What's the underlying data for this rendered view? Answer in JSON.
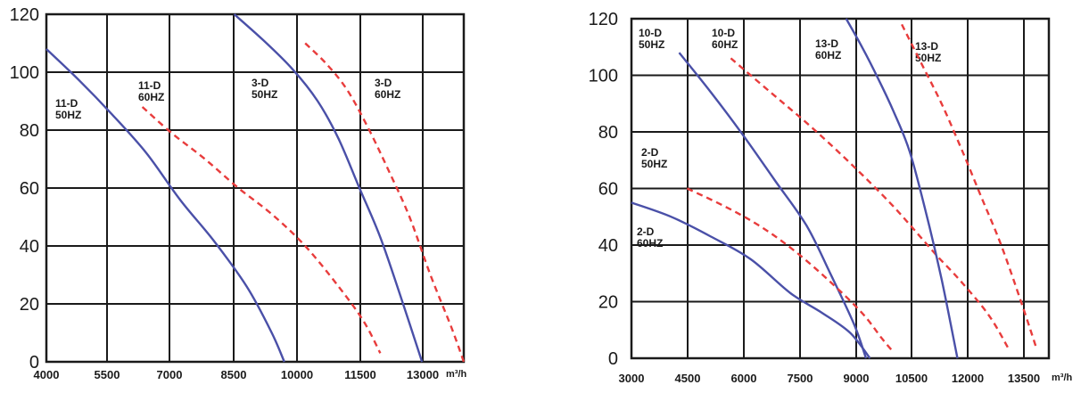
{
  "chart_data": [
    {
      "type": "line",
      "x_unit": "m³/h",
      "x_ticks": [
        "4000",
        "5500",
        "7000",
        "8500",
        "10000",
        "11500",
        "13000"
      ],
      "y_ticks": [
        "0",
        "20",
        "40",
        "60",
        "80",
        "100",
        "120"
      ],
      "xlim": [
        4000,
        14000
      ],
      "ylim": [
        0,
        120
      ],
      "grid": true,
      "series": [
        {
          "label": "11-D\n50HZ",
          "color": "#4a50a8",
          "style": "solid",
          "x": [
            4000,
            4800,
            5600,
            6400,
            7200,
            8000,
            8800,
            9400,
            9700
          ],
          "y": [
            108,
            97,
            85,
            72,
            56,
            42,
            26,
            10,
            0
          ]
        },
        {
          "label": "11-D\n60HZ",
          "color": "#e83c3c",
          "style": "dashed",
          "x": [
            6300,
            7000,
            7800,
            8600,
            9400,
            10200,
            11000,
            11600,
            12000
          ],
          "y": [
            88,
            79,
            70,
            60,
            51,
            40,
            26,
            14,
            3
          ]
        },
        {
          "label": "3-D\n50HZ",
          "color": "#4a50a8",
          "style": "solid",
          "x": [
            8500,
            9200,
            9900,
            10500,
            11000,
            11500,
            12000,
            12500,
            13000
          ],
          "y": [
            120,
            111,
            101,
            90,
            77,
            60,
            43,
            22,
            0
          ]
        },
        {
          "label": "3-D\n60HZ",
          "color": "#e83c3c",
          "style": "dashed",
          "x": [
            10200,
            10700,
            11200,
            11700,
            12200,
            12700,
            13200,
            13700,
            14000
          ],
          "y": [
            110,
            103,
            94,
            81,
            66,
            50,
            30,
            12,
            0
          ]
        }
      ]
    },
    {
      "type": "line",
      "x_unit": "m³/h",
      "x_ticks": [
        "3000",
        "4500",
        "6000",
        "7500",
        "9000",
        "10500",
        "12000",
        "13500"
      ],
      "y_ticks": [
        "0",
        "20",
        "40",
        "60",
        "80",
        "100",
        "120"
      ],
      "xlim": [
        3000,
        13500
      ],
      "ylim": [
        0,
        120
      ],
      "grid": true,
      "series": [
        {
          "label": "10-D\n50HZ",
          "color": "#4a50a8",
          "style": "solid",
          "x": [
            4200,
            5000,
            5800,
            6600,
            7400,
            8000,
            8600,
            8900
          ],
          "y": [
            108,
            94,
            79,
            63,
            47,
            30,
            12,
            0
          ]
        },
        {
          "label": "10-D\n60HZ",
          "color": "#e83c3c",
          "style": "dashed",
          "x": [
            5500,
            6500,
            7500,
            8500,
            9500,
            10200,
            10700,
            11300,
            12000,
            12500
          ],
          "y": [
            106,
            94,
            82,
            69,
            55,
            44,
            36,
            27,
            15,
            3
          ]
        },
        {
          "label": "13-D\n60HZ",
          "color": "#e83c3c",
          "style": "dashed",
          "x": [
            4400,
            5300,
            6200,
            7100,
            8000,
            8800,
            9300,
            9600
          ],
          "y": [
            60,
            54,
            47,
            38,
            27,
            16,
            7,
            2
          ]
        },
        {
          "label": "13-D\n50HZ",
          "color": "#4a50a8",
          "style": "solid",
          "x": [
            3000,
            4000,
            5000,
            6000,
            7000,
            7800,
            8500,
            9000
          ],
          "y": [
            55,
            50,
            43,
            35,
            23,
            16,
            9,
            0
          ]
        },
        {
          "label": "2-D\n50HZ",
          "color": "#4a50a8",
          "style": "solid",
          "x": [
            8400,
            8800,
            9200,
            9600,
            10000,
            10400,
            10800,
            11200
          ],
          "y": [
            120,
            110,
            99,
            87,
            73,
            52,
            28,
            0
          ]
        },
        {
          "label": "2-D\n60HZ",
          "color": "#e83c3c",
          "style": "dashed",
          "x": [
            9800,
            10300,
            10800,
            11300,
            11800,
            12300,
            12800,
            13200
          ],
          "y": [
            118,
            104,
            90,
            74,
            57,
            40,
            20,
            3
          ]
        }
      ]
    }
  ]
}
